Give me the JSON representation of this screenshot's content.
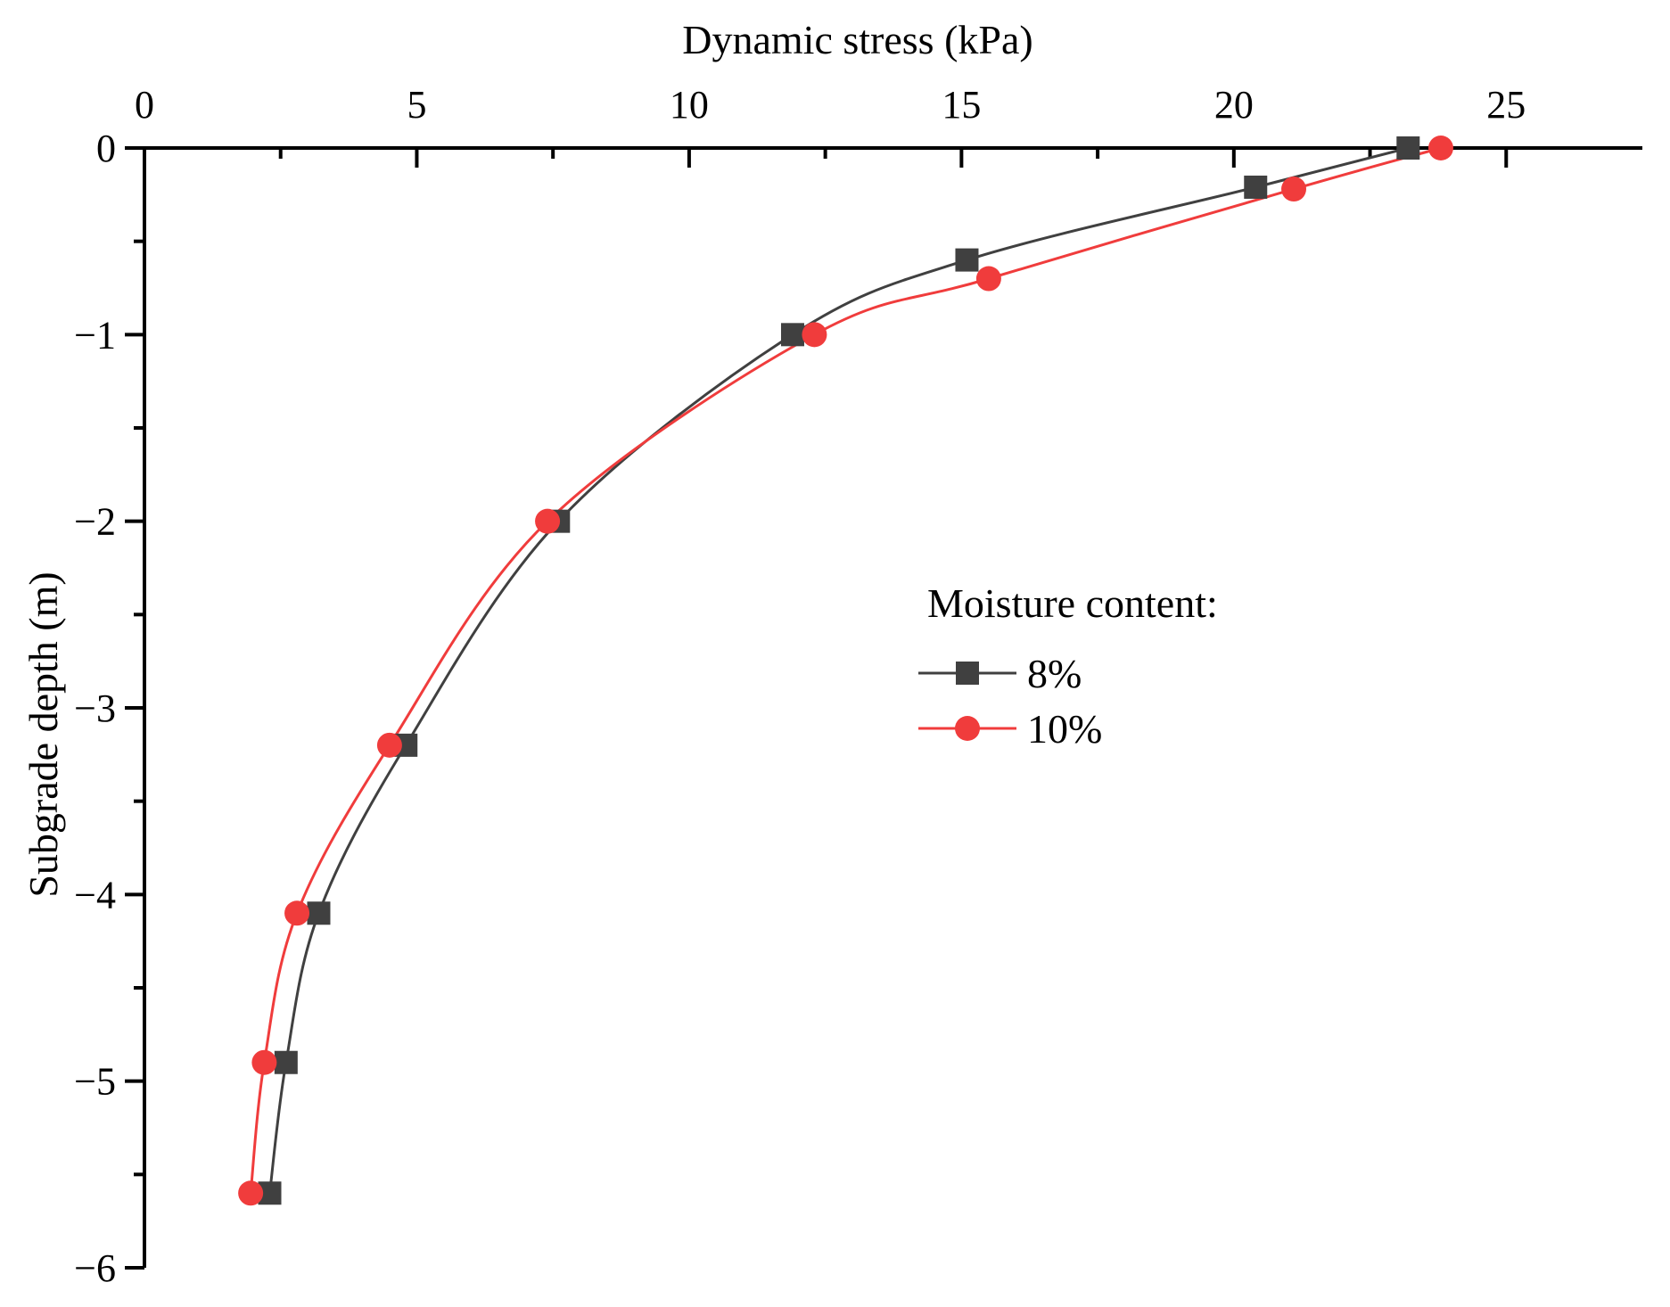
{
  "chart_data": {
    "type": "line",
    "xlabel": "Dynamic stress (kPa)",
    "ylabel": "Subgrade depth (m)",
    "xlim": [
      0,
      27.5
    ],
    "ylim": [
      -6,
      0
    ],
    "x_ticks": [
      "0",
      "5",
      "10",
      "15",
      "20",
      "25"
    ],
    "y_ticks": [
      "0",
      "−1",
      "−2",
      "−3",
      "−4",
      "−5",
      "−6"
    ],
    "x_axis_position": "top",
    "grid": false,
    "legend": {
      "title": "Moisture content:",
      "placement": "center-right"
    },
    "series": [
      {
        "name": "8%",
        "color": "#404040",
        "marker": "square",
        "points": [
          {
            "x": 23.2,
            "y": 0
          },
          {
            "x": 20.4,
            "y": -0.21
          },
          {
            "x": 15.1,
            "y": -0.6
          },
          {
            "x": 11.9,
            "y": -1.0
          },
          {
            "x": 7.6,
            "y": -2.0
          },
          {
            "x": 4.8,
            "y": -3.2
          },
          {
            "x": 3.2,
            "y": -4.1
          },
          {
            "x": 2.6,
            "y": -4.9
          },
          {
            "x": 2.3,
            "y": -5.6
          }
        ]
      },
      {
        "name": "10%",
        "color": "#f03c3c",
        "marker": "circle",
        "points": [
          {
            "x": 23.8,
            "y": 0
          },
          {
            "x": 21.1,
            "y": -0.22
          },
          {
            "x": 15.5,
            "y": -0.7
          },
          {
            "x": 12.3,
            "y": -1.0
          },
          {
            "x": 7.4,
            "y": -2.0
          },
          {
            "x": 4.5,
            "y": -3.2
          },
          {
            "x": 2.8,
            "y": -4.1
          },
          {
            "x": 2.2,
            "y": -4.9
          },
          {
            "x": 1.95,
            "y": -5.6
          }
        ]
      }
    ]
  }
}
